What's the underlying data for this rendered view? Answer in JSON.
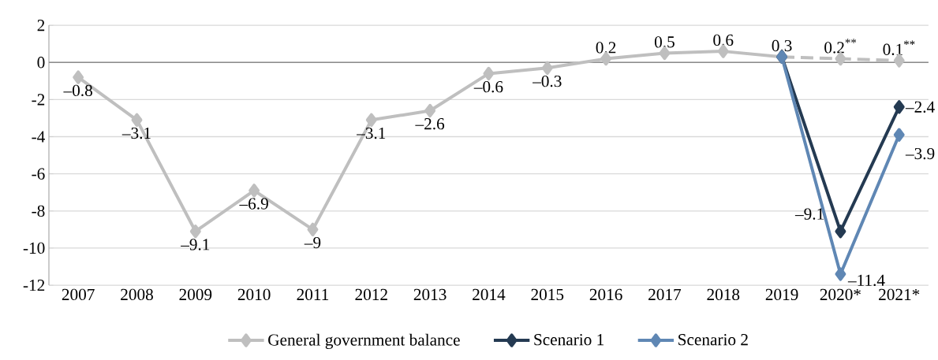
{
  "chart_data": {
    "type": "line",
    "categories": [
      "2007",
      "2008",
      "2009",
      "2010",
      "2011",
      "2012",
      "2013",
      "2014",
      "2015",
      "2016",
      "2017",
      "2018",
      "2019",
      "2020*",
      "2021*"
    ],
    "series": [
      {
        "name": "General government balance",
        "color": "#bfbfbf",
        "line_style": "solid",
        "values": [
          -0.8,
          -3.1,
          -9.1,
          -6.9,
          -9,
          -3.1,
          -2.6,
          -0.6,
          -0.3,
          0.2,
          0.5,
          0.6,
          0.3,
          null,
          null
        ],
        "value_labels": [
          "–0.8",
          "–3.1",
          "–9.1",
          "–6.9",
          "–9",
          "–3.1",
          "–2.6",
          "–0.6",
          "–0.3",
          "0.2",
          "0.5",
          "0.6",
          "0.3",
          null,
          null
        ]
      },
      {
        "color": "#bfbfbf",
        "line_style": "dashed",
        "values": [
          null,
          null,
          null,
          null,
          null,
          null,
          null,
          null,
          null,
          null,
          null,
          null,
          0.3,
          0.2,
          0.1
        ],
        "value_labels": [
          null,
          null,
          null,
          null,
          null,
          null,
          null,
          null,
          null,
          null,
          null,
          null,
          null,
          "0.2$^{**}$",
          "0.1$^{**}$"
        ]
      },
      {
        "name": "Scenario 1",
        "color": "#243a52",
        "line_style": "solid",
        "values": [
          null,
          null,
          null,
          null,
          null,
          null,
          null,
          null,
          null,
          null,
          null,
          null,
          0.3,
          -9.1,
          -2.4
        ],
        "value_labels": [
          null,
          null,
          null,
          null,
          null,
          null,
          null,
          null,
          null,
          null,
          null,
          null,
          null,
          "–9.1",
          "–2.4"
        ]
      },
      {
        "name": "Scenario 2",
        "color": "#5f87b4",
        "line_style": "solid",
        "values": [
          null,
          null,
          null,
          null,
          null,
          null,
          null,
          null,
          null,
          null,
          null,
          null,
          0.3,
          -11.4,
          -3.9
        ],
        "value_labels": [
          null,
          null,
          null,
          null,
          null,
          null,
          null,
          null,
          null,
          null,
          null,
          null,
          null,
          "–11.4",
          "–3.9"
        ]
      }
    ],
    "ylim": [
      -12,
      2
    ],
    "yticks": [
      {
        "value": -12,
        "label": "-12"
      },
      {
        "value": -10,
        "label": "-10"
      },
      {
        "value": -8,
        "label": "-8"
      },
      {
        "value": -6,
        "label": "-6"
      },
      {
        "value": -4,
        "label": "-4"
      },
      {
        "value": -2,
        "label": "-2"
      },
      {
        "value": 0,
        "label": "0"
      },
      {
        "value": 2,
        "label": "2"
      }
    ],
    "grid": "y",
    "legend": "bottom",
    "marker": "diamond"
  }
}
